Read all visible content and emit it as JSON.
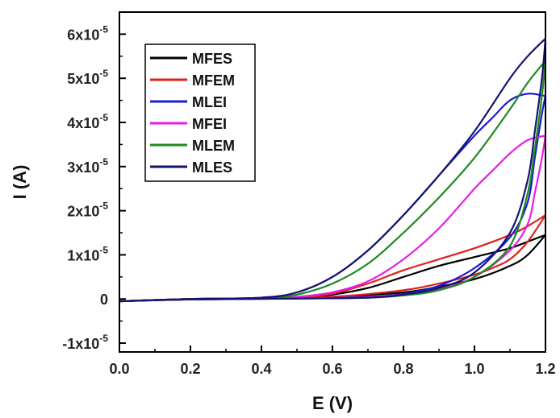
{
  "chart_data": {
    "type": "line",
    "xlabel": "E (V)",
    "ylabel": "I (A)",
    "xlim": [
      0.0,
      1.2
    ],
    "ylim": [
      -1.2e-05,
      6.5e-05
    ],
    "x_ticks": [
      0.0,
      0.2,
      0.4,
      0.6,
      0.8,
      1.0,
      1.2
    ],
    "x_tick_labels": [
      "0.0",
      "0.2",
      "0.4",
      "0.6",
      "0.8",
      "1.0",
      "1.2"
    ],
    "y_ticks": [
      {
        "value": -1e-05,
        "base": "-1x10",
        "exp": "-5"
      },
      {
        "value": 0,
        "base": "0",
        "exp": ""
      },
      {
        "value": 1e-05,
        "base": "1x10",
        "exp": "-5"
      },
      {
        "value": 2e-05,
        "base": "2x10",
        "exp": "-5"
      },
      {
        "value": 3e-05,
        "base": "3x10",
        "exp": "-5"
      },
      {
        "value": 4e-05,
        "base": "4x10",
        "exp": "-5"
      },
      {
        "value": 5e-05,
        "base": "5x10",
        "exp": "-5"
      },
      {
        "value": 6e-05,
        "base": "6x10",
        "exp": "-5"
      }
    ],
    "grid": false,
    "legend_position": "top-left",
    "series": [
      {
        "name": "MFES",
        "color": "#000000",
        "forward": [
          [
            0.0,
            -5e-07
          ],
          [
            0.2,
            0
          ],
          [
            0.4,
            1e-07
          ],
          [
            0.6,
            5e-07
          ],
          [
            0.8,
            1.5e-06
          ],
          [
            0.9,
            2.8e-06
          ],
          [
            1.0,
            4.5e-06
          ],
          [
            1.1,
            7.5e-06
          ],
          [
            1.15,
            1e-05
          ],
          [
            1.2,
            1.45e-05
          ]
        ],
        "reverse": [
          [
            1.2,
            1.45e-05
          ],
          [
            1.15,
            1.3e-05
          ],
          [
            1.1,
            1.15e-05
          ],
          [
            1.0,
            9.5e-06
          ],
          [
            0.9,
            7.5e-06
          ],
          [
            0.8,
            5e-06
          ],
          [
            0.7,
            2.5e-06
          ],
          [
            0.6,
            1e-06
          ],
          [
            0.5,
            3e-07
          ],
          [
            0.4,
            1e-07
          ],
          [
            0.2,
            -1e-07
          ],
          [
            0.0,
            -5e-07
          ]
        ]
      },
      {
        "name": "MFEM",
        "color": "#e0201b",
        "forward": [
          [
            0.0,
            -5e-07
          ],
          [
            0.2,
            0
          ],
          [
            0.4,
            1e-07
          ],
          [
            0.6,
            5e-07
          ],
          [
            0.8,
            2e-06
          ],
          [
            0.9,
            3.5e-06
          ],
          [
            1.0,
            5.5e-06
          ],
          [
            1.05,
            7e-06
          ],
          [
            1.1,
            9e-06
          ],
          [
            1.15,
            1.3e-05
          ],
          [
            1.2,
            1.9e-05
          ]
        ],
        "reverse": [
          [
            1.2,
            1.9e-05
          ],
          [
            1.15,
            1.65e-05
          ],
          [
            1.1,
            1.45e-05
          ],
          [
            1.0,
            1.15e-05
          ],
          [
            0.9,
            9e-06
          ],
          [
            0.8,
            6.5e-06
          ],
          [
            0.7,
            3.5e-06
          ],
          [
            0.6,
            1.2e-06
          ],
          [
            0.5,
            4e-07
          ],
          [
            0.4,
            1e-07
          ],
          [
            0.2,
            -1e-07
          ],
          [
            0.0,
            -5e-07
          ]
        ]
      },
      {
        "name": "MLEI",
        "color": "#1b1bd6",
        "forward": [
          [
            0.0,
            -5e-07
          ],
          [
            0.2,
            0
          ],
          [
            0.4,
            3e-07
          ],
          [
            0.5,
            1.5e-06
          ],
          [
            0.6,
            5e-06
          ],
          [
            0.7,
            1.1e-05
          ],
          [
            0.8,
            1.9e-05
          ],
          [
            0.9,
            2.8e-05
          ],
          [
            1.0,
            3.7e-05
          ],
          [
            1.05,
            4.1e-05
          ],
          [
            1.1,
            4.5e-05
          ],
          [
            1.15,
            4.65e-05
          ],
          [
            1.2,
            4.6e-05
          ]
        ],
        "reverse": [
          [
            1.2,
            4.6e-05
          ],
          [
            1.19,
            4.2e-05
          ],
          [
            1.17,
            3.2e-05
          ],
          [
            1.15,
            2.2e-05
          ],
          [
            1.1,
            1.4e-05
          ],
          [
            1.0,
            7e-06
          ],
          [
            0.9,
            3e-06
          ],
          [
            0.8,
            1.2e-06
          ],
          [
            0.7,
            5e-07
          ],
          [
            0.5,
            1e-07
          ],
          [
            0.2,
            -1e-07
          ],
          [
            0.0,
            -5e-07
          ]
        ]
      },
      {
        "name": "MFEI",
        "color": "#e81ce8",
        "forward": [
          [
            0.0,
            -5e-07
          ],
          [
            0.2,
            0
          ],
          [
            0.4,
            1e-07
          ],
          [
            0.5,
            5e-07
          ],
          [
            0.6,
            1.5e-06
          ],
          [
            0.7,
            4e-06
          ],
          [
            0.8,
            9e-06
          ],
          [
            0.9,
            1.6e-05
          ],
          [
            1.0,
            2.5e-05
          ],
          [
            1.05,
            2.9e-05
          ],
          [
            1.1,
            3.3e-05
          ],
          [
            1.15,
            3.6e-05
          ],
          [
            1.2,
            3.7e-05
          ]
        ],
        "reverse": [
          [
            1.2,
            3.7e-05
          ],
          [
            1.19,
            3.2e-05
          ],
          [
            1.17,
            2.4e-05
          ],
          [
            1.15,
            1.7e-05
          ],
          [
            1.1,
            1.1e-05
          ],
          [
            1.0,
            5e-06
          ],
          [
            0.9,
            2.2e-06
          ],
          [
            0.8,
            1e-06
          ],
          [
            0.7,
            4e-07
          ],
          [
            0.5,
            1e-07
          ],
          [
            0.2,
            -1e-07
          ],
          [
            0.0,
            -5e-07
          ]
        ]
      },
      {
        "name": "MLEM",
        "color": "#1d8a1d",
        "forward": [
          [
            0.0,
            -5e-07
          ],
          [
            0.2,
            0
          ],
          [
            0.4,
            2e-07
          ],
          [
            0.5,
            1e-06
          ],
          [
            0.6,
            3.5e-06
          ],
          [
            0.7,
            8e-06
          ],
          [
            0.8,
            1.5e-05
          ],
          [
            0.9,
            2.3e-05
          ],
          [
            1.0,
            3.2e-05
          ],
          [
            1.1,
            4.3e-05
          ],
          [
            1.15,
            4.9e-05
          ],
          [
            1.2,
            5.4e-05
          ]
        ],
        "reverse": [
          [
            1.2,
            5.4e-05
          ],
          [
            1.19,
            4.6e-05
          ],
          [
            1.17,
            3.4e-05
          ],
          [
            1.15,
            2.4e-05
          ],
          [
            1.1,
            1.2e-05
          ],
          [
            1.0,
            5e-06
          ],
          [
            0.9,
            2e-06
          ],
          [
            0.8,
            8e-07
          ],
          [
            0.7,
            3e-07
          ],
          [
            0.5,
            1e-07
          ],
          [
            0.2,
            -1e-07
          ],
          [
            0.0,
            -5e-07
          ]
        ]
      },
      {
        "name": "MLES",
        "color": "#141470",
        "forward": [
          [
            0.0,
            -5e-07
          ],
          [
            0.2,
            0
          ],
          [
            0.4,
            3e-07
          ],
          [
            0.5,
            1.5e-06
          ],
          [
            0.6,
            5e-06
          ],
          [
            0.7,
            1.1e-05
          ],
          [
            0.8,
            1.9e-05
          ],
          [
            0.9,
            2.8e-05
          ],
          [
            1.0,
            3.8e-05
          ],
          [
            1.1,
            5e-05
          ],
          [
            1.15,
            5.5e-05
          ],
          [
            1.2,
            5.9e-05
          ]
        ],
        "reverse": [
          [
            1.2,
            5.9e-05
          ],
          [
            1.19,
            5e-05
          ],
          [
            1.17,
            3.8e-05
          ],
          [
            1.15,
            2.7e-05
          ],
          [
            1.1,
            1.5e-05
          ],
          [
            1.0,
            6e-06
          ],
          [
            0.9,
            2.5e-06
          ],
          [
            0.8,
            1e-06
          ],
          [
            0.7,
            3e-07
          ],
          [
            0.5,
            1e-07
          ],
          [
            0.2,
            -1e-07
          ],
          [
            0.0,
            -5e-07
          ]
        ]
      }
    ]
  }
}
